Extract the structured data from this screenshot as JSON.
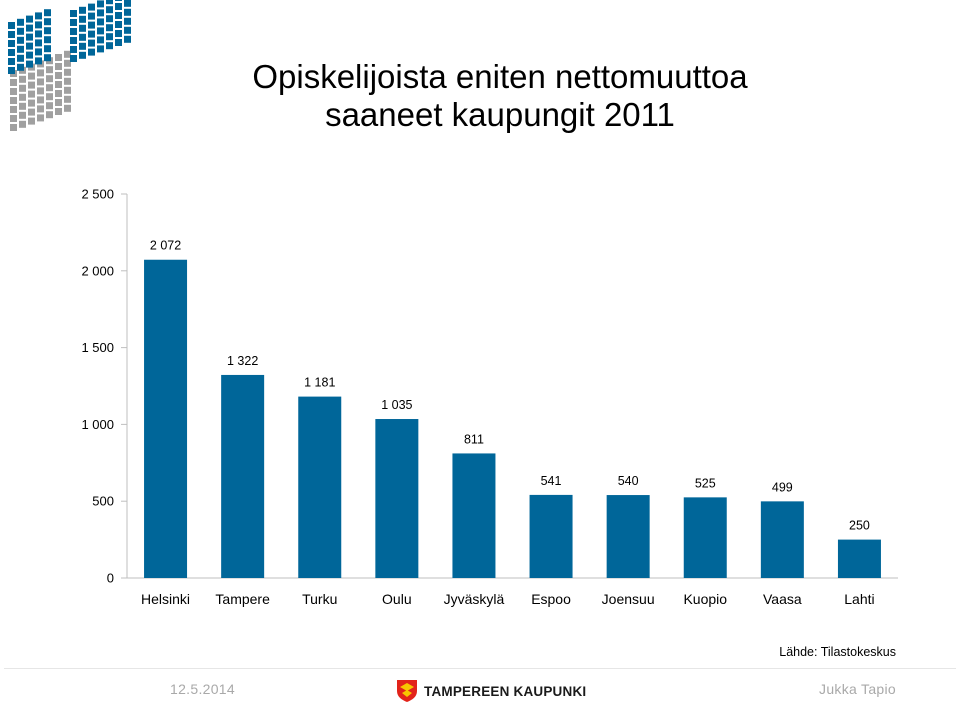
{
  "header": {
    "title_line1": "Opiskelijoista eniten nettomuuttoa",
    "title_line2": "saaneet kaupungit 2011"
  },
  "chart_data": {
    "type": "bar",
    "categories": [
      "Helsinki",
      "Tampere",
      "Turku",
      "Oulu",
      "Jyväskylä",
      "Espoo",
      "Joensuu",
      "Kuopio",
      "Vaasa",
      "Lahti"
    ],
    "values": [
      2072,
      1322,
      1181,
      1035,
      811,
      541,
      540,
      525,
      499,
      250
    ],
    "value_labels": [
      "2 072",
      "1 322",
      "1 181",
      "1 035",
      "811",
      "541",
      "540",
      "525",
      "499",
      "250"
    ],
    "yticks": [
      0,
      500,
      1000,
      1500,
      2000,
      2500
    ],
    "ytick_labels": [
      "0",
      "500",
      "1 000",
      "1 500",
      "2 000",
      "2 500"
    ],
    "ylim": [
      0,
      2500
    ],
    "bar_color": "#006699",
    "grid": false
  },
  "source_text": "Lähde: Tilastokeskus",
  "footer": {
    "date": "12.5.2014",
    "author": "Jukka Tapio",
    "city_logo_text": "TAMPEREEN KAUPUNKI"
  },
  "colors": {
    "logo_blue": "#006699",
    "logo_grey": "#a0a0a0",
    "footer_text": "#a9a9a9",
    "city_logo_red": "#e2231a",
    "city_logo_yellow": "#f7c600"
  }
}
